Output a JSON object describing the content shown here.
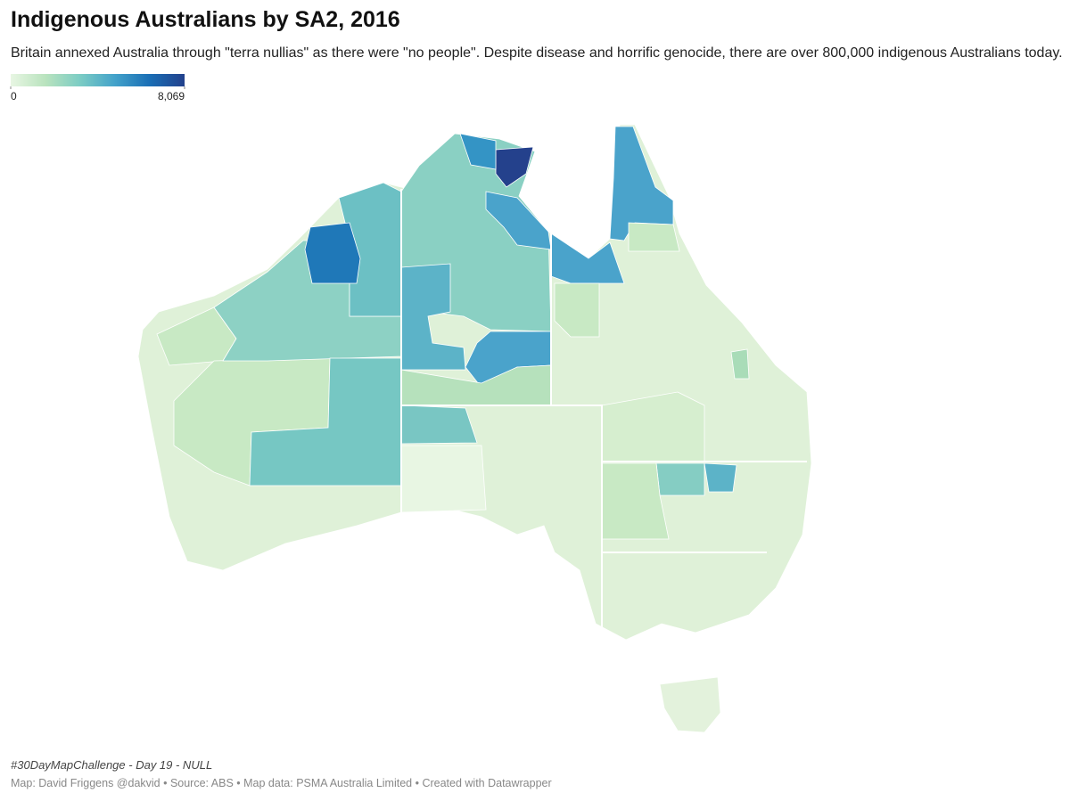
{
  "header": {
    "title": "Indigenous Australians by SA2, 2016",
    "subtitle": "Britain annexed Australia through \"terra nullias\" as there were \"no people\". Despite disease and horrific genocide, there are over 800,000 indigenous Australians today."
  },
  "legend": {
    "range": [
      0,
      8069
    ],
    "ticks": [
      0,
      {
        "value": 8069,
        "label": "8,069"
      }
    ],
    "colors": [
      "#e8f6e3",
      "#b9e3be",
      "#7bccc4",
      "#43a2ca",
      "#1a6eb5",
      "#23418c"
    ]
  },
  "footer": {
    "note": "#30DayMapChallenge - Day 19 - NULL",
    "credit": "Map: David Friggens @dakvid • Source: ABS • Map data: PSMA Australia Limited • Created with Datawrapper"
  }
}
